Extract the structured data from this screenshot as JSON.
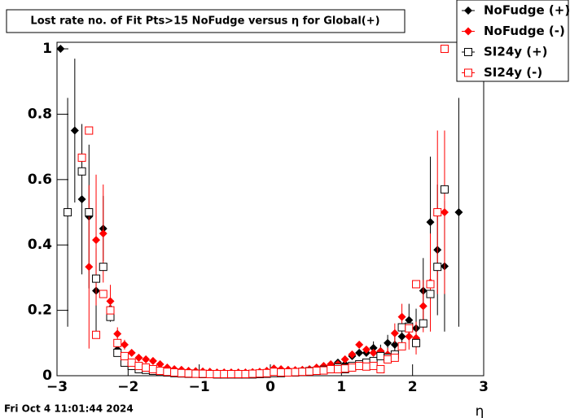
{
  "chart_data": {
    "type": "scatter",
    "title": "Lost rate no. of Fit Pts>15 NoFudge versus η for Global(+)",
    "x_label": "η",
    "timestamp": "Fri Oct  4 11:01:44 2024",
    "xlim": [
      -3,
      3
    ],
    "ylim": [
      0,
      1.02
    ],
    "xticks": [
      {
        "value": -3,
        "label": "−3"
      },
      {
        "value": -2,
        "label": "−2"
      },
      {
        "value": -1,
        "label": "−1"
      },
      0,
      1,
      2,
      3
    ],
    "yticks": [
      0,
      0.2,
      0.4,
      0.6,
      0.8,
      1
    ],
    "legend": "top-right",
    "x": [
      -2.95,
      -2.85,
      -2.75,
      -2.65,
      -2.55,
      -2.45,
      -2.35,
      -2.25,
      -2.15,
      -2.05,
      -1.95,
      -1.85,
      -1.75,
      -1.65,
      -1.55,
      -1.45,
      -1.35,
      -1.25,
      -1.15,
      -1.05,
      -0.95,
      -0.85,
      -0.75,
      -0.65,
      -0.55,
      -0.45,
      -0.35,
      -0.25,
      -0.15,
      -0.05,
      0.05,
      0.15,
      0.25,
      0.35,
      0.45,
      0.55,
      0.65,
      0.75,
      0.85,
      0.95,
      1.05,
      1.15,
      1.25,
      1.35,
      1.45,
      1.55,
      1.65,
      1.75,
      1.85,
      1.95,
      2.05,
      2.15,
      2.25,
      2.35,
      2.45,
      2.55,
      2.65
    ],
    "series": [
      {
        "name": "NoFudge (+)",
        "color": "#000000",
        "marker": "diamond",
        "values": [
          1.0,
          0.5,
          0.75,
          0.54,
          0.487,
          0.26,
          0.45,
          0.205,
          0.08,
          0.05,
          0.03,
          0.025,
          0.022,
          0.02,
          0.015,
          0.01,
          0.01,
          0.008,
          0.007,
          0.008,
          0.006,
          0.006,
          0.005,
          0.005,
          0.005,
          0.005,
          0.005,
          0.006,
          0.006,
          0.008,
          0.012,
          0.012,
          0.012,
          0.015,
          0.015,
          0.018,
          0.02,
          0.025,
          0.03,
          0.04,
          0.035,
          0.06,
          0.07,
          0.07,
          0.085,
          0.075,
          0.1,
          0.095,
          0.12,
          0.17,
          0.145,
          0.26,
          0.47,
          0.385,
          0.335,
          null,
          0.5
        ],
        "errors": [
          0,
          0.35,
          0.22,
          0.23,
          0.22,
          0.13,
          0.1,
          0.04,
          0.015,
          0.01,
          0,
          0,
          0,
          0,
          0,
          0,
          0,
          0,
          0,
          0,
          0,
          0,
          0,
          0,
          0,
          0,
          0,
          0,
          0,
          0,
          0,
          0,
          0,
          0,
          0,
          0,
          0,
          0,
          0,
          0,
          0,
          0,
          0,
          0,
          0.02,
          0.02,
          0.025,
          0.03,
          0.04,
          0.05,
          0.06,
          0.1,
          0.2,
          0.2,
          0.2,
          null,
          0.35
        ]
      },
      {
        "name": "NoFudge (-)",
        "color": "#ff0000",
        "marker": "diamond",
        "values": [
          null,
          null,
          null,
          null,
          0.333,
          0.415,
          0.435,
          0.228,
          0.128,
          0.095,
          0.07,
          0.055,
          0.05,
          0.045,
          0.035,
          0.025,
          0.02,
          0.018,
          0.015,
          0.014,
          0.013,
          0.012,
          0.01,
          0.01,
          0.01,
          0.01,
          0.01,
          0.011,
          0.012,
          0.015,
          0.022,
          0.02,
          0.018,
          0.017,
          0.018,
          0.02,
          0.025,
          0.03,
          0.035,
          0.035,
          0.05,
          0.065,
          0.095,
          0.08,
          0.07,
          0.075,
          0.065,
          0.13,
          0.18,
          0.12,
          0.115,
          0.213,
          0.285,
          0.5,
          0.5,
          null,
          null
        ],
        "errors": [
          null,
          null,
          null,
          null,
          0.25,
          0.2,
          0.15,
          0.05,
          0.02,
          0.015,
          0.01,
          0,
          0,
          0,
          0,
          0,
          0,
          0,
          0,
          0,
          0,
          0,
          0,
          0,
          0,
          0,
          0,
          0,
          0,
          0,
          0,
          0,
          0,
          0,
          0,
          0,
          0,
          0,
          0,
          0,
          0,
          0,
          0,
          0,
          0,
          0,
          0.02,
          0.03,
          0.04,
          0.04,
          0.05,
          0.08,
          0.15,
          0.25,
          0.25,
          null,
          null
        ]
      },
      {
        "name": "SI24y (+)",
        "color": "#000000",
        "marker": "square",
        "values": [
          null,
          0.5,
          null,
          0.625,
          0.5,
          0.297,
          0.333,
          0.18,
          0.07,
          0.04,
          0.03,
          0.02,
          0.018,
          0.015,
          0.012,
          0.01,
          0.008,
          0.007,
          0.006,
          0.006,
          0.005,
          0.005,
          0.004,
          0.004,
          0.004,
          0.004,
          0.004,
          0.004,
          0.005,
          0.006,
          0.008,
          0.008,
          0.01,
          0.01,
          0.012,
          0.014,
          0.015,
          0.018,
          0.02,
          0.025,
          0.02,
          0.03,
          0.035,
          0.04,
          0.045,
          0.06,
          0.055,
          0.065,
          0.148,
          0.15,
          0.1,
          0.16,
          0.25,
          0.333,
          0.57,
          null,
          null
        ]
      },
      {
        "name": "SI24y (-)",
        "color": "#ff0000",
        "marker": "square",
        "values": [
          null,
          null,
          null,
          0.667,
          0.75,
          0.125,
          0.25,
          0.2,
          0.1,
          0.06,
          0.04,
          0.03,
          0.025,
          0.02,
          0.015,
          0.012,
          0.01,
          0.008,
          0.007,
          0.006,
          0.006,
          0.005,
          0.005,
          0.005,
          0.005,
          0.005,
          0.005,
          0.006,
          0.007,
          0.008,
          0.012,
          0.01,
          0.01,
          0.011,
          0.012,
          0.013,
          0.015,
          0.016,
          0.02,
          0.02,
          0.022,
          0.025,
          0.03,
          0.028,
          0.03,
          0.02,
          0.05,
          0.055,
          0.09,
          0.145,
          0.28,
          null,
          0.28,
          0.5,
          1.0,
          null,
          null
        ]
      }
    ]
  }
}
